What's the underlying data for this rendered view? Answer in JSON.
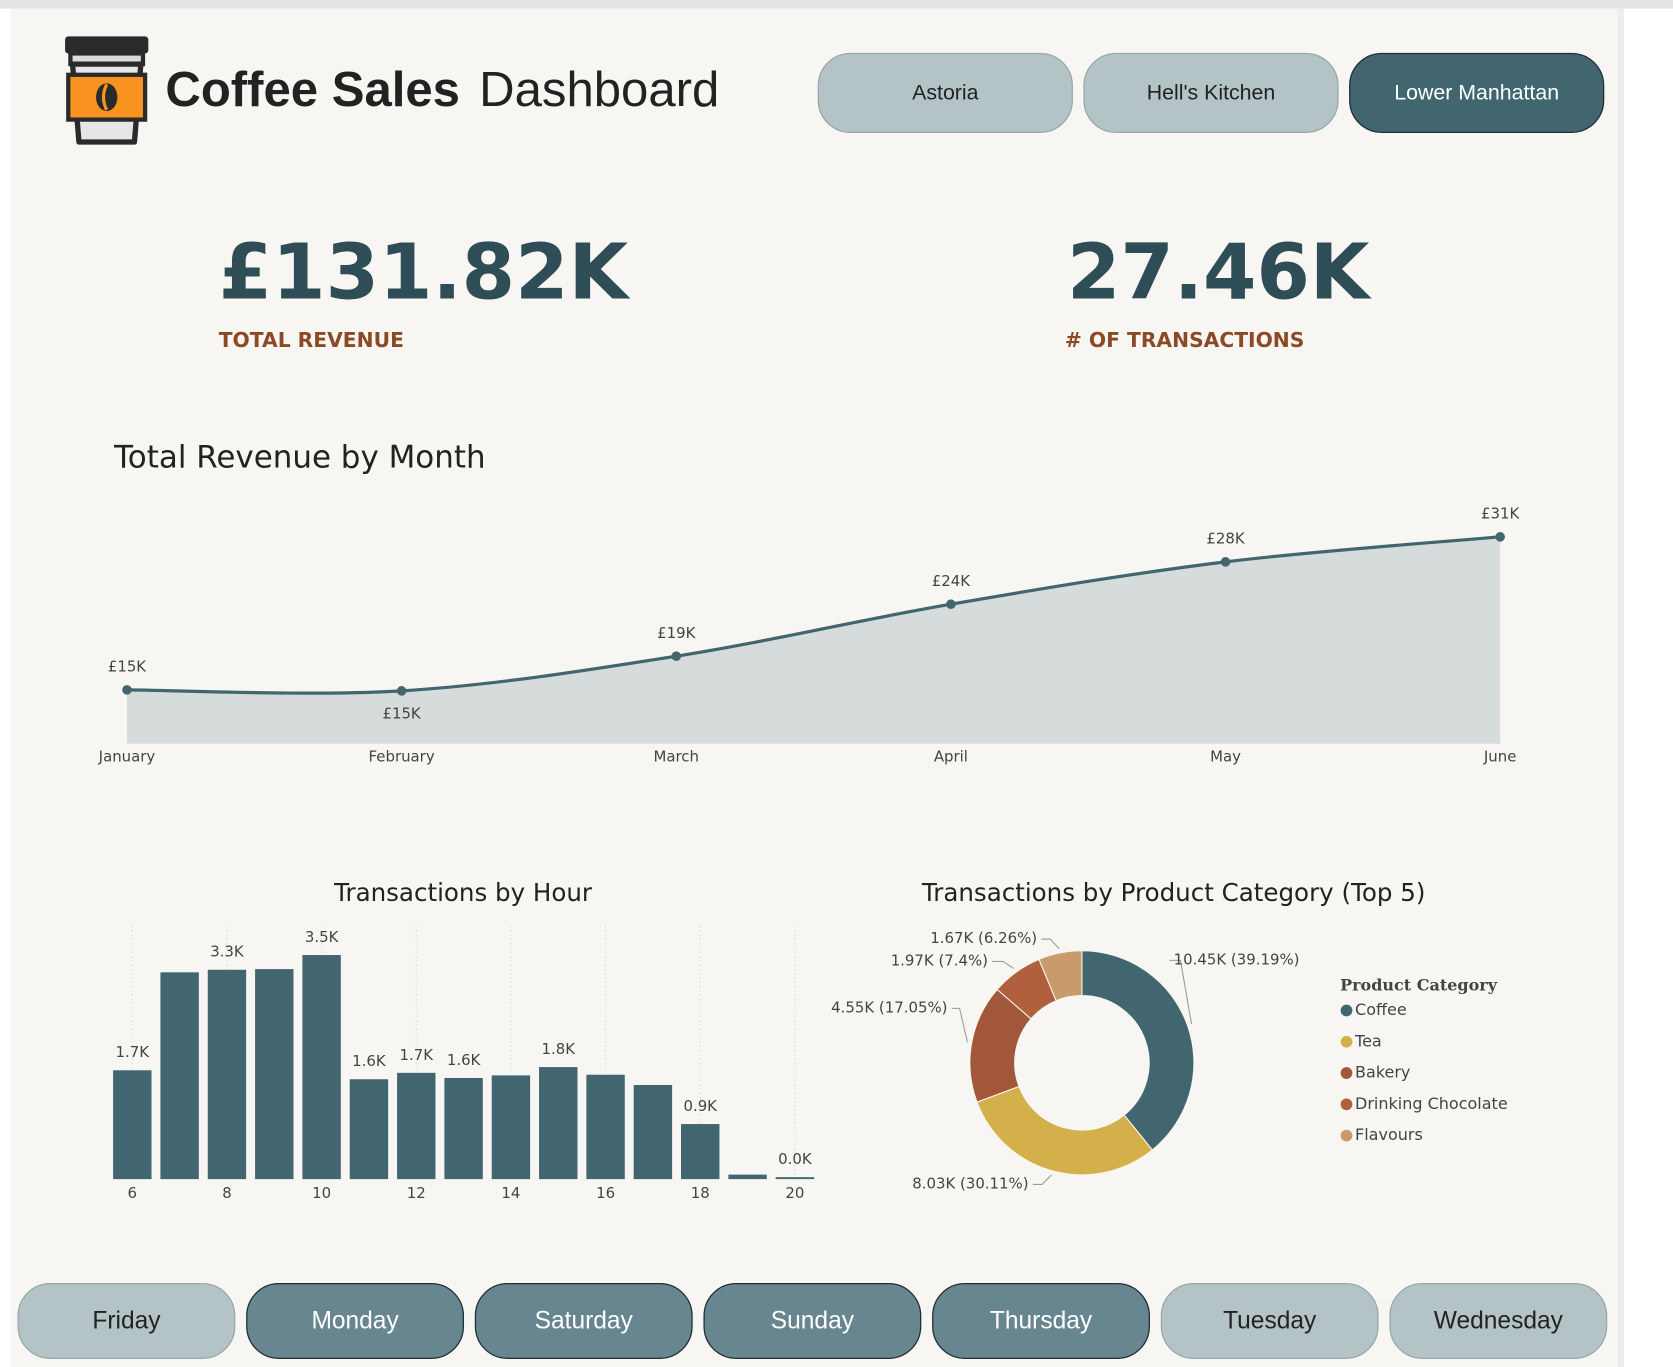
{
  "header": {
    "title_main": "Coffee Sales",
    "title_rest": "Dashboard"
  },
  "locations": {
    "options": [
      "Astoria",
      "Hell's Kitchen",
      "Lower Manhattan"
    ],
    "selected": [
      2
    ]
  },
  "kpis": [
    {
      "value": "£131.82K",
      "label": "TOTAL REVENUE"
    },
    {
      "value": "27.46K",
      "label": "# OF TRANSACTIONS"
    }
  ],
  "chart_data": [
    {
      "type": "area",
      "title": "Total Revenue by Month",
      "categories": [
        "January",
        "February",
        "March",
        "April",
        "May",
        "June"
      ],
      "values": [
        15.1,
        15.0,
        18.6,
        24.0,
        28.4,
        31.0
      ],
      "value_labels": [
        "£15K",
        "£15K",
        "£19K",
        "£24K",
        "£28K",
        "£31K"
      ],
      "color": "#41666f",
      "fill": "#d5dcdb",
      "ylim": [
        9.5,
        33
      ]
    },
    {
      "type": "bar",
      "title": "Transactions by Hour",
      "x": [
        6,
        7,
        8,
        9,
        10,
        11,
        12,
        13,
        14,
        15,
        16,
        17,
        18,
        19,
        20
      ],
      "values": [
        1.7,
        3.23,
        3.27,
        3.28,
        3.5,
        1.56,
        1.66,
        1.58,
        1.62,
        1.75,
        1.63,
        1.47,
        0.86,
        0.07,
        0.03
      ],
      "value_labels": [
        "1.7K",
        null,
        "3.3K",
        null,
        "3.5K",
        "1.6K",
        "1.7K",
        "1.6K",
        null,
        "1.8K",
        null,
        null,
        "0.9K",
        null,
        "0.0K"
      ],
      "color": "#41666f",
      "xticks": [
        6,
        8,
        10,
        12,
        14,
        16,
        18,
        20
      ],
      "ylim": [
        0,
        3.9
      ],
      "grid": true
    },
    {
      "type": "donut",
      "title": "Transactions by Product Category (Top 5)",
      "legend_title": "Product Category",
      "categories": [
        "Coffee",
        "Tea",
        "Bakery",
        "Drinking Chocolate",
        "Flavours"
      ],
      "values": [
        10.45,
        8.03,
        4.55,
        1.97,
        1.67
      ],
      "value_labels": [
        "10.45K (39.19%)",
        "8.03K (30.11%)",
        "4.55K (17.05%)",
        "1.97K (7.4%)",
        "1.67K (6.26%)"
      ],
      "colors": [
        "#41666f",
        "#d4b04a",
        "#a2573a",
        "#b0603c",
        "#c89a6c"
      ],
      "legend": "right"
    }
  ],
  "days": {
    "options": [
      "Friday",
      "Monday",
      "Saturday",
      "Sunday",
      "Thursday",
      "Tuesday",
      "Wednesday"
    ],
    "selected": [
      1,
      2,
      3,
      4
    ]
  }
}
